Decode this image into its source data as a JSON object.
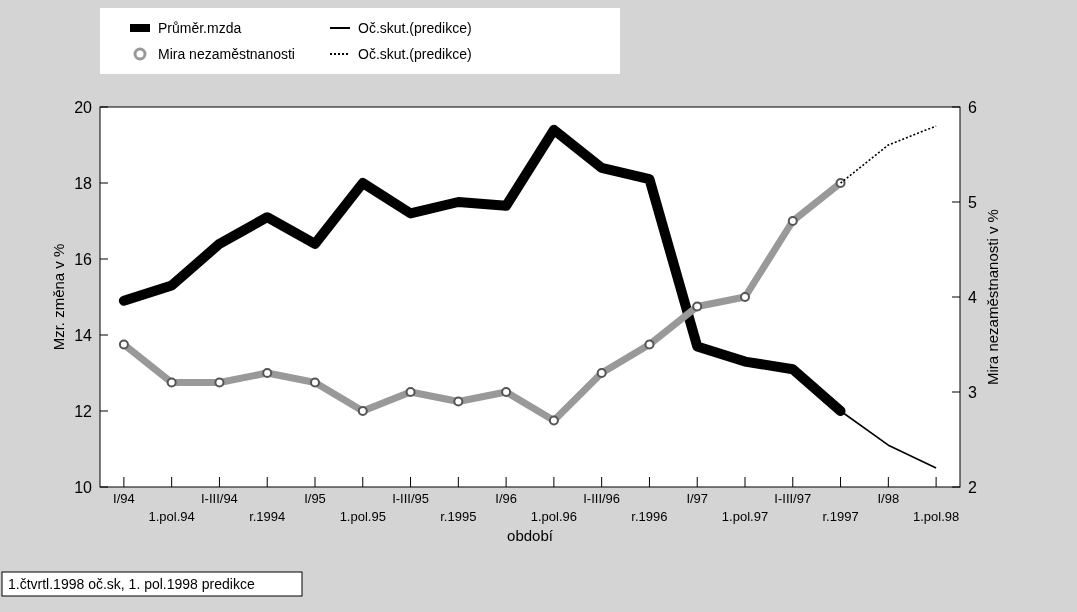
{
  "chart_data": {
    "type": "line",
    "xlabel": "období",
    "ylabel": "Mzr. změna v %",
    "y2label": "Mira nezaměstnanosti v %",
    "categories": [
      "I/94",
      "1.pol.94",
      "I-III/94",
      "r.1994",
      "I/95",
      "1.pol.95",
      "I-III/95",
      "r.1995",
      "I/96",
      "1.pol.96",
      "I-III/96",
      "r.1996",
      "I/97",
      "1.pol.97",
      "I-III/97",
      "r.1997",
      "I/98",
      "1.pol.98"
    ],
    "ylim": [
      10,
      20
    ],
    "yticks": [
      10,
      12,
      14,
      16,
      18,
      20
    ],
    "y2lim": [
      2,
      6
    ],
    "y2ticks": [
      2,
      3,
      4,
      5,
      6
    ],
    "series": [
      {
        "name": "Průměr.mzda",
        "color": "#000000",
        "values": [
          14.9,
          15.3,
          16.4,
          17.1,
          16.4,
          18.0,
          17.2,
          17.5,
          17.4,
          19.4,
          18.4,
          18.1,
          13.7,
          13.3,
          13.1,
          12.0,
          null,
          null
        ]
      },
      {
        "name": "Mira nezaměstnanosti",
        "color": "#999999",
        "axis": "y2",
        "marker": "circle",
        "values": [
          3.5,
          3.1,
          3.1,
          3.2,
          3.1,
          2.8,
          3.0,
          2.9,
          3.0,
          2.7,
          3.2,
          3.5,
          3.9,
          4.0,
          4.8,
          5.2,
          null,
          null
        ]
      },
      {
        "name": "Oč.skut.(predikce)",
        "color": "#000000",
        "line_style": "solid",
        "values": [
          null,
          null,
          null,
          null,
          null,
          null,
          null,
          null,
          null,
          null,
          null,
          null,
          null,
          null,
          null,
          12.0,
          11.1,
          10.5
        ]
      },
      {
        "name": "Oč.skut.(predikce)",
        "color": "#000000",
        "axis": "y2",
        "line_style": "dotted",
        "values": [
          null,
          null,
          null,
          null,
          null,
          null,
          null,
          null,
          null,
          null,
          null,
          null,
          null,
          null,
          null,
          5.2,
          5.6,
          5.8
        ]
      }
    ],
    "legend": "top",
    "grid": false,
    "annotations": [
      "1.čtvrtl.1998 oč.sk, 1. pol.1998 predikce"
    ]
  }
}
